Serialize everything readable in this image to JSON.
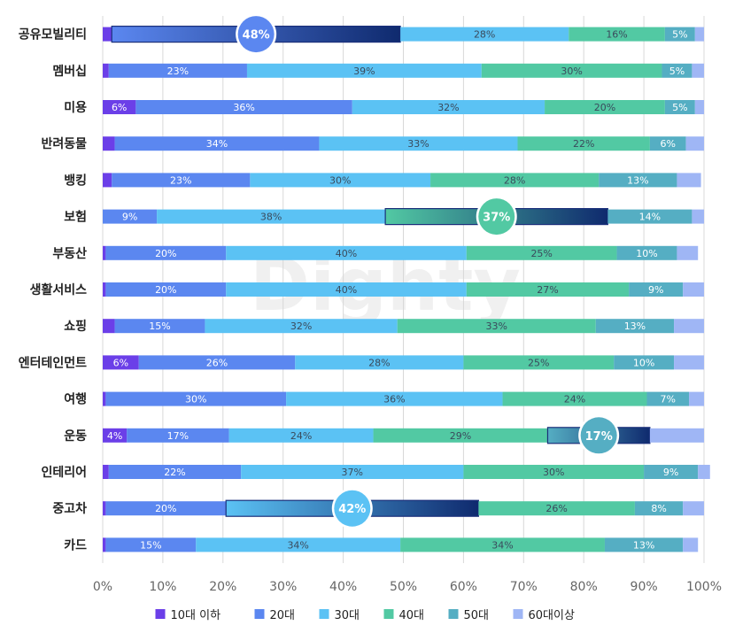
{
  "chart_data": {
    "type": "bar",
    "orientation": "horizontal",
    "stacked": true,
    "watermark": "Dighty",
    "categories": [
      "공유모빌리티",
      "멤버십",
      "미용",
      "반려동물",
      "뱅킹",
      "보험",
      "부동산",
      "생활서비스",
      "쇼핑",
      "엔터테인먼트",
      "여행",
      "운동",
      "인테리어",
      "중고차",
      "카드"
    ],
    "series": [
      {
        "name": "10대 이하",
        "color": "#6B3FE8",
        "values": [
          1.5,
          1,
          5.5,
          2,
          1.5,
          0,
          0.5,
          0.5,
          2,
          6,
          0.5,
          4,
          1,
          0.5,
          0.5
        ]
      },
      {
        "name": "20대",
        "color": "#5B87F0",
        "values": [
          48,
          23,
          36,
          34,
          23,
          9,
          20,
          20,
          15,
          26,
          30,
          17,
          22,
          20,
          15
        ]
      },
      {
        "name": "30대",
        "color": "#5BC2F4",
        "values": [
          28,
          39,
          32,
          33,
          30,
          38,
          40,
          40,
          32,
          28,
          36,
          24,
          37,
          42,
          34
        ]
      },
      {
        "name": "40대",
        "color": "#52C9A3",
        "values": [
          16,
          30,
          20,
          22,
          28,
          37,
          25,
          27,
          33,
          25,
          24,
          29,
          30,
          26,
          34
        ]
      },
      {
        "name": "50대",
        "color": "#55AEC3",
        "values": [
          5,
          5,
          5,
          6,
          13,
          14,
          10,
          9,
          13,
          10,
          7,
          17,
          9,
          8,
          13
        ]
      },
      {
        "name": "60대이상",
        "color": "#9FB6F5",
        "values": [
          1.5,
          2,
          1.5,
          3,
          4,
          2,
          3.5,
          3.5,
          5,
          5,
          2.5,
          9,
          2,
          3.5,
          2.5
        ]
      }
    ],
    "data_labels": [
      [
        "",
        "48%",
        "28%",
        "16%",
        "5%",
        ""
      ],
      [
        "",
        "23%",
        "39%",
        "30%",
        "5%",
        ""
      ],
      [
        "6%",
        "36%",
        "32%",
        "20%",
        "5%",
        ""
      ],
      [
        "",
        "34%",
        "33%",
        "22%",
        "6%",
        ""
      ],
      [
        "",
        "23%",
        "30%",
        "28%",
        "13%",
        ""
      ],
      [
        "",
        "9%",
        "38%",
        "37%",
        "14%",
        ""
      ],
      [
        "",
        "20%",
        "40%",
        "25%",
        "10%",
        ""
      ],
      [
        "",
        "20%",
        "40%",
        "27%",
        "9%",
        ""
      ],
      [
        "",
        "15%",
        "32%",
        "33%",
        "13%",
        ""
      ],
      [
        "6%",
        "26%",
        "28%",
        "25%",
        "10%",
        ""
      ],
      [
        "",
        "30%",
        "36%",
        "24%",
        "7%",
        ""
      ],
      [
        "4%",
        "17%",
        "24%",
        "29%",
        "17%",
        ""
      ],
      [
        "",
        "22%",
        "37%",
        "30%",
        "9%",
        ""
      ],
      [
        "",
        "20%",
        "42%",
        "26%",
        "8%",
        ""
      ],
      [
        "",
        "15%",
        "34%",
        "34%",
        "13%",
        ""
      ]
    ],
    "highlights": [
      {
        "category": "공유모빌리티",
        "series": "20대",
        "label": "48%"
      },
      {
        "category": "보험",
        "series": "40대",
        "label": "37%"
      },
      {
        "category": "운동",
        "series": "50대",
        "label": "17%"
      },
      {
        "category": "중고차",
        "series": "30대",
        "label": "42%"
      }
    ],
    "xticks": [
      "0%",
      "10%",
      "20%",
      "30%",
      "40%",
      "50%",
      "60%",
      "70%",
      "80%",
      "90%",
      "100%"
    ],
    "xlim": [
      0,
      100
    ],
    "grid": true,
    "legend_position": "bottom"
  }
}
